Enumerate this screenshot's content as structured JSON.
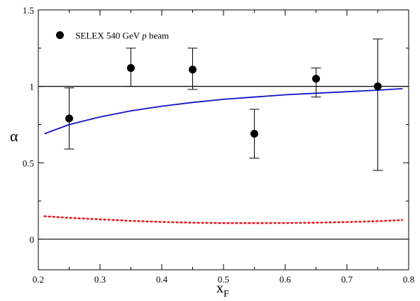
{
  "chart_data": {
    "type": "scatter",
    "xlabel": "x",
    "xlabel_sub": "F",
    "ylabel": "α",
    "xlim": [
      0.2,
      0.8
    ],
    "ylim": [
      -0.2,
      1.5
    ],
    "x_ticks": [
      "0.2",
      "0.3",
      "0.4",
      "0.5",
      "0.6",
      "0.7",
      "0.8"
    ],
    "y_ticks": [
      "0",
      "0.5",
      "1",
      "1.5"
    ],
    "grid": false,
    "legend_placement": "top-left",
    "reference_lines": [
      {
        "y": 1,
        "color": "#000000"
      },
      {
        "y": 0,
        "color": "#000000"
      }
    ],
    "series": [
      {
        "name": "SELEX 540 GeV p beam",
        "legend_prefix": "SELEX 540 GeV ",
        "legend_italic": "p",
        "legend_suffix": " beam",
        "kind": "points_with_errors",
        "color": "#000000",
        "points": [
          {
            "x": 0.25,
            "y": 0.79,
            "ylo": 0.59,
            "yhi": 0.99
          },
          {
            "x": 0.35,
            "y": 1.12,
            "ylo": 1.0,
            "yhi": 1.25
          },
          {
            "x": 0.45,
            "y": 1.11,
            "ylo": 0.98,
            "yhi": 1.25
          },
          {
            "x": 0.55,
            "y": 0.69,
            "ylo": 0.53,
            "yhi": 0.85
          },
          {
            "x": 0.65,
            "y": 1.05,
            "ylo": 0.93,
            "yhi": 1.12
          },
          {
            "x": 0.75,
            "y": 1.0,
            "ylo": 0.45,
            "yhi": 1.31
          }
        ]
      },
      {
        "kind": "line",
        "style": "solid",
        "color": "#1414c8",
        "x": [
          0.21,
          0.25,
          0.3,
          0.35,
          0.4,
          0.45,
          0.5,
          0.55,
          0.6,
          0.65,
          0.7,
          0.75,
          0.79
        ],
        "values": [
          0.69,
          0.75,
          0.8,
          0.84,
          0.87,
          0.895,
          0.915,
          0.93,
          0.945,
          0.955,
          0.965,
          0.975,
          0.985
        ]
      },
      {
        "kind": "line",
        "style": "dotted",
        "color": "#e8141e",
        "x": [
          0.21,
          0.25,
          0.3,
          0.35,
          0.4,
          0.45,
          0.5,
          0.55,
          0.6,
          0.65,
          0.7,
          0.75,
          0.79
        ],
        "values": [
          0.15,
          0.14,
          0.13,
          0.12,
          0.113,
          0.108,
          0.105,
          0.105,
          0.106,
          0.108,
          0.112,
          0.118,
          0.125
        ]
      }
    ]
  }
}
